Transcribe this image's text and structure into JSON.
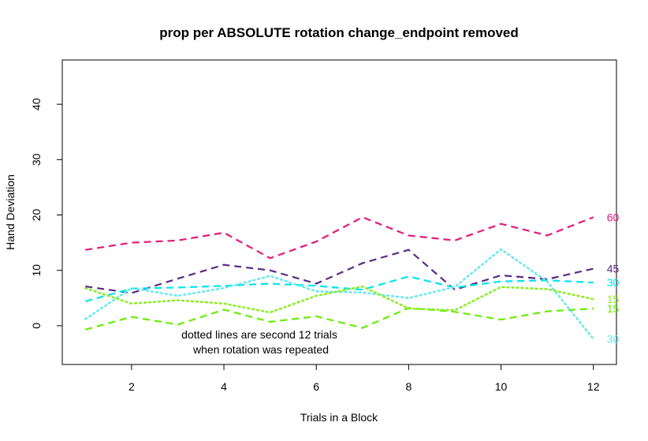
{
  "chart_data": {
    "type": "line",
    "title": "prop per ABSOLUTE rotation change_endpoint removed",
    "xlabel": "Trials in a Block",
    "ylabel": "Hand Deviation",
    "xlim": [
      0.5,
      12.5
    ],
    "ylim": [
      -7,
      48
    ],
    "x_ticks": [
      2,
      4,
      6,
      8,
      10,
      12
    ],
    "y_ticks": [
      0,
      10,
      20,
      30,
      40
    ],
    "grid": false,
    "x": [
      1,
      2,
      3,
      4,
      5,
      6,
      7,
      8,
      9,
      10,
      11,
      12
    ],
    "annotation": [
      "dotted lines are second 12 trials",
      "when rotation was repeated"
    ],
    "series": [
      {
        "name": "60",
        "dash": "dashed",
        "color": "#e8177d",
        "values": [
          13.7,
          15.0,
          15.4,
          16.8,
          12.2,
          15.2,
          19.6,
          16.3,
          15.4,
          18.4,
          16.3,
          19.6
        ]
      },
      {
        "name": "45",
        "dash": "dashed",
        "color": "#5b2a86",
        "values": [
          7.1,
          5.9,
          8.5,
          11.0,
          10.0,
          7.6,
          11.3,
          13.7,
          6.5,
          9.1,
          8.4,
          10.3
        ]
      },
      {
        "name": "30",
        "dash": "dashed",
        "color": "#00e5ee",
        "values": [
          4.4,
          6.7,
          6.9,
          7.2,
          7.6,
          7.2,
          6.5,
          8.9,
          6.9,
          8.0,
          8.2,
          7.8
        ]
      },
      {
        "name": "15",
        "dash": "dashed",
        "color": "#66ee00",
        "values": [
          -0.7,
          1.6,
          0.2,
          2.9,
          0.7,
          1.7,
          -0.4,
          3.2,
          2.5,
          1.1,
          2.6,
          3.1
        ]
      },
      {
        "name": "30",
        "dash": "dotted",
        "color": "#66e8f0",
        "values": [
          1.2,
          6.8,
          5.4,
          6.8,
          9.0,
          6.2,
          6.0,
          5.0,
          7.0,
          13.8,
          8.0,
          -2.4
        ]
      },
      {
        "name": "15",
        "dash": "dotted",
        "color": "#88ee22",
        "values": [
          6.8,
          4.0,
          4.6,
          4.0,
          2.4,
          5.4,
          7.1,
          3.1,
          2.8,
          7.0,
          6.6,
          4.8
        ]
      }
    ]
  }
}
